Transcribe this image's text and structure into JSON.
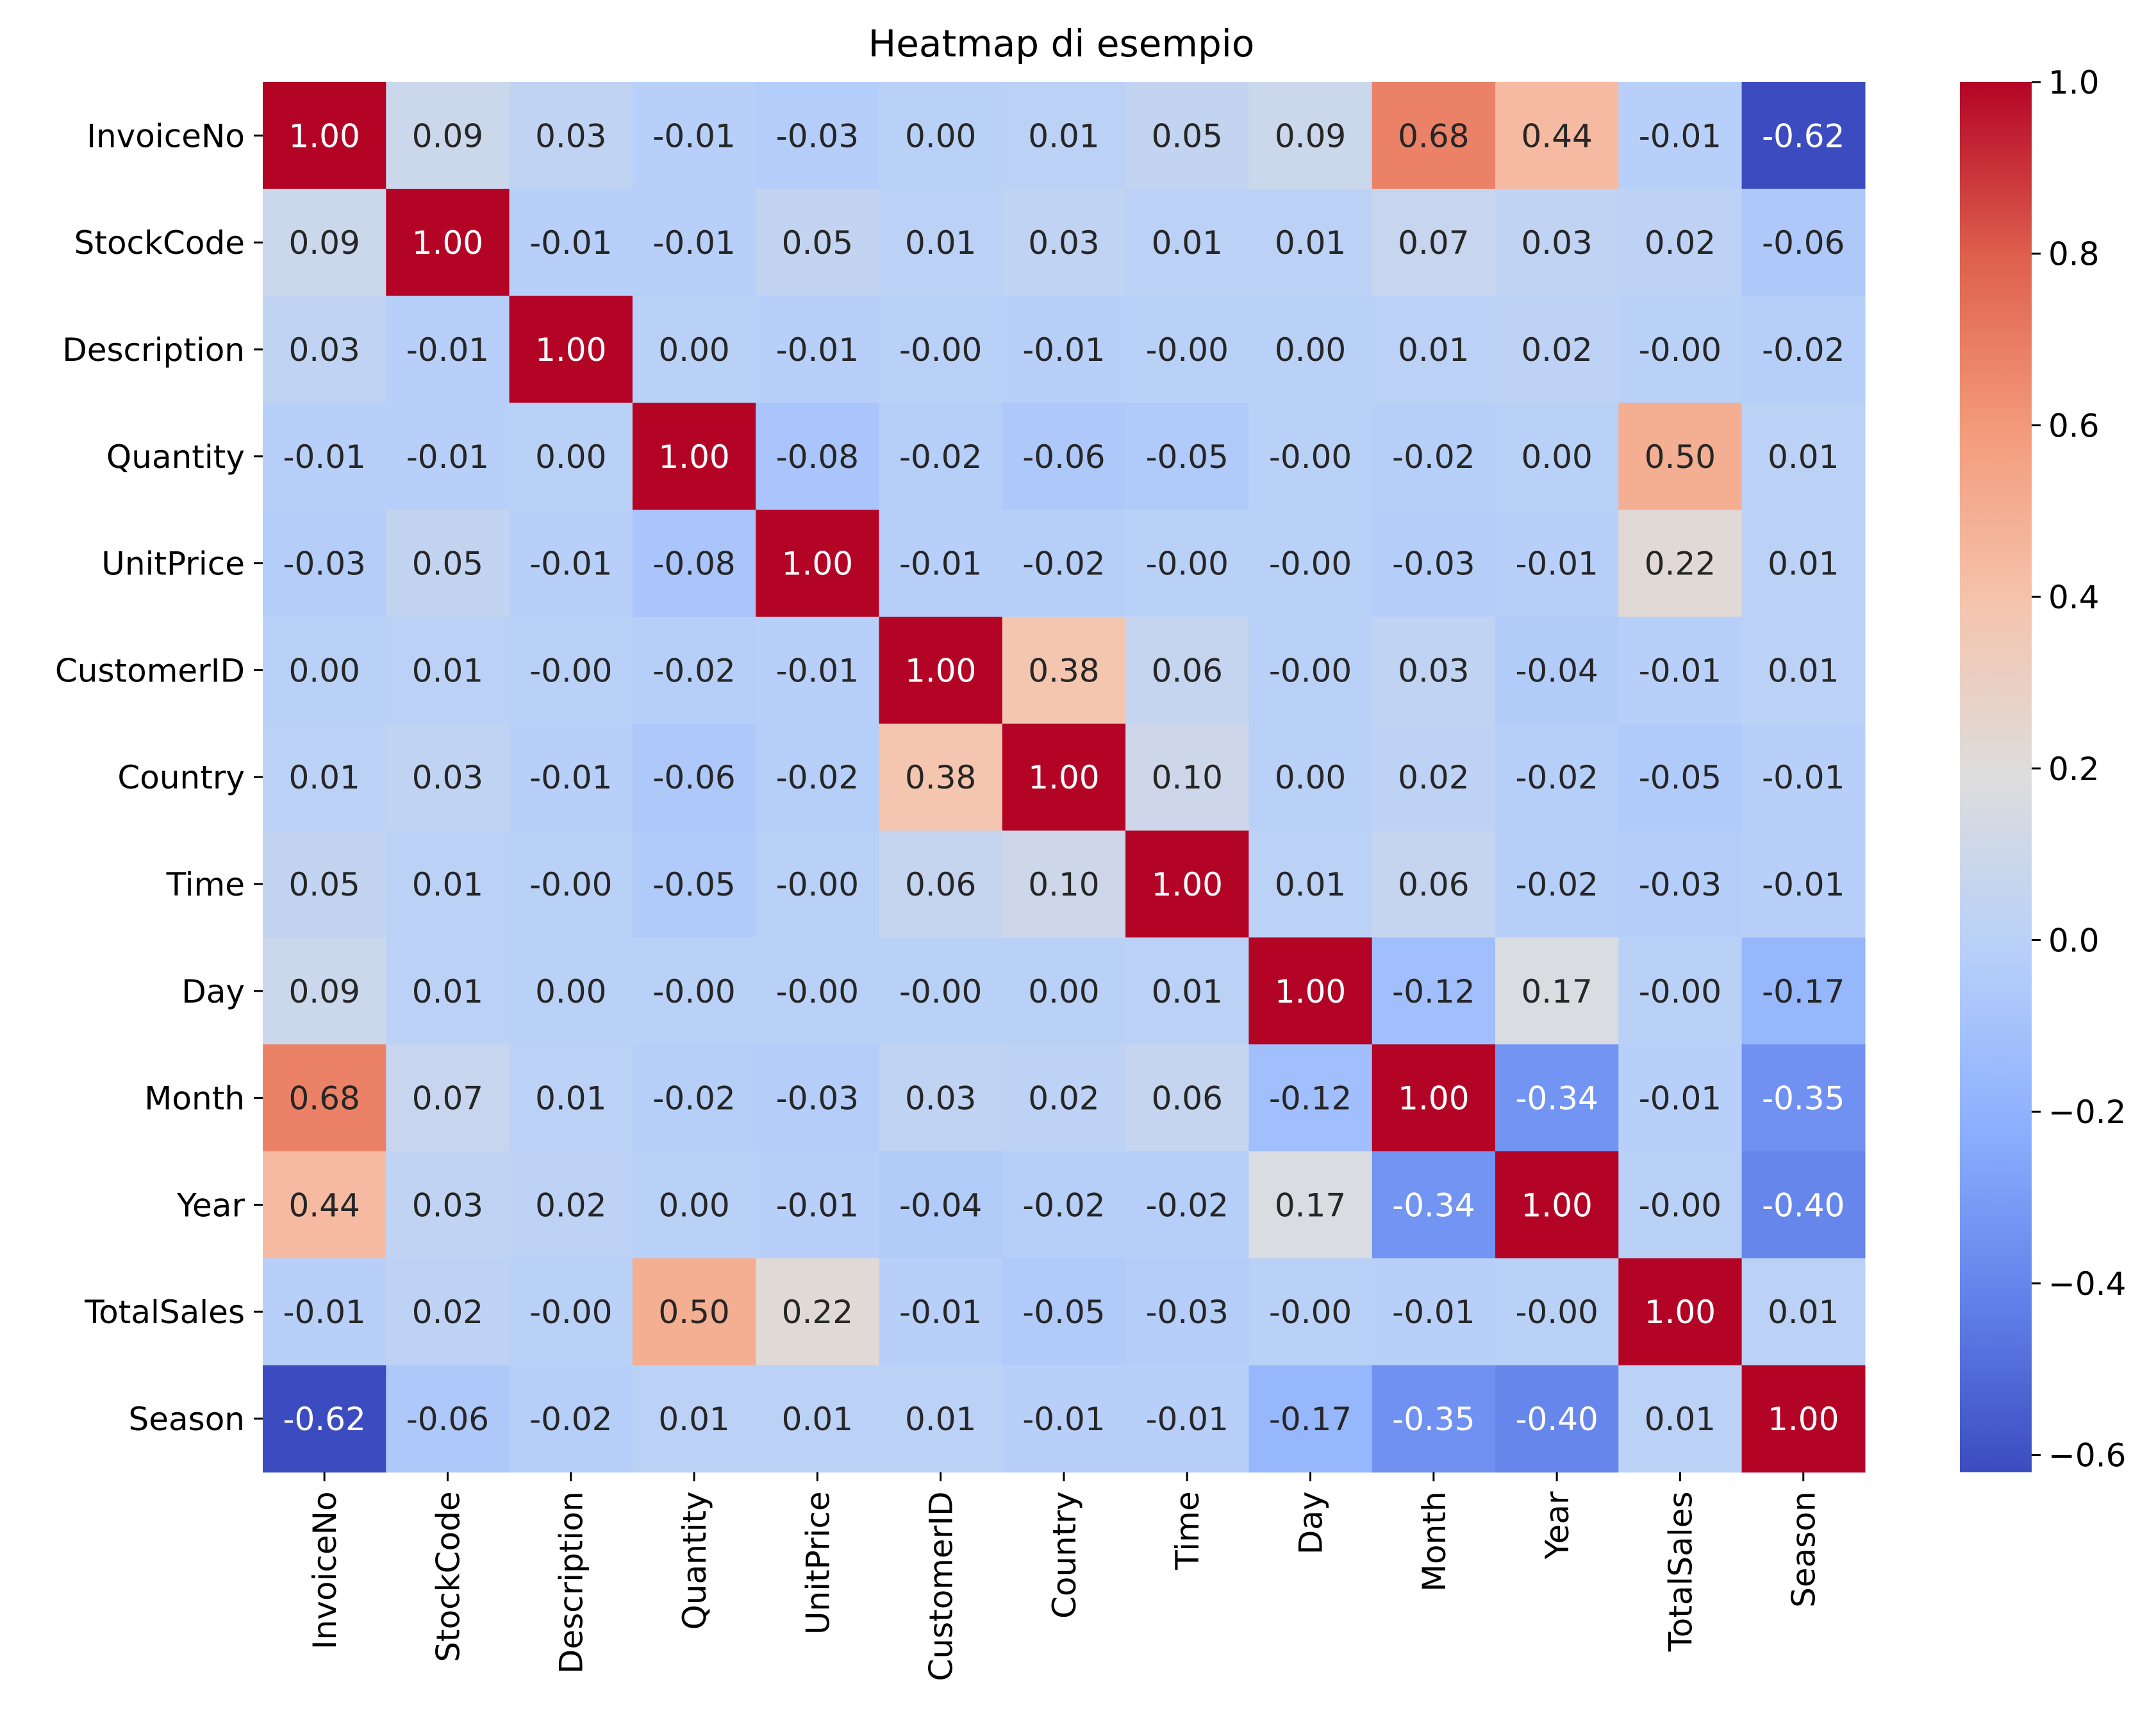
{
  "chart_data": {
    "type": "heatmap",
    "title": "Heatmap di esempio",
    "xlabel": "",
    "ylabel": "",
    "colormap": "coolwarm",
    "value_range": [
      -0.62,
      1.0
    ],
    "categories": [
      "InvoiceNo",
      "StockCode",
      "Description",
      "Quantity",
      "UnitPrice",
      "CustomerID",
      "Country",
      "Time",
      "Day",
      "Month",
      "Year",
      "TotalSales",
      "Season"
    ],
    "values": [
      [
        1.0,
        0.09,
        0.03,
        -0.01,
        -0.03,
        0.0,
        0.01,
        0.05,
        0.09,
        0.68,
        0.44,
        -0.01,
        -0.62
      ],
      [
        0.09,
        1.0,
        -0.01,
        -0.01,
        0.05,
        0.01,
        0.03,
        0.01,
        0.01,
        0.07,
        0.03,
        0.02,
        -0.06
      ],
      [
        0.03,
        -0.01,
        1.0,
        0.0,
        -0.01,
        -0.0,
        -0.01,
        -0.0,
        0.0,
        0.01,
        0.02,
        -0.0,
        -0.02
      ],
      [
        -0.01,
        -0.01,
        0.0,
        1.0,
        -0.08,
        -0.02,
        -0.06,
        -0.05,
        -0.0,
        -0.02,
        0.0,
        0.5,
        0.01
      ],
      [
        -0.03,
        0.05,
        -0.01,
        -0.08,
        1.0,
        -0.01,
        -0.02,
        -0.0,
        -0.0,
        -0.03,
        -0.01,
        0.22,
        0.01
      ],
      [
        0.0,
        0.01,
        -0.0,
        -0.02,
        -0.01,
        1.0,
        0.38,
        0.06,
        -0.0,
        0.03,
        -0.04,
        -0.01,
        0.01
      ],
      [
        0.01,
        0.03,
        -0.01,
        -0.06,
        -0.02,
        0.38,
        1.0,
        0.1,
        0.0,
        0.02,
        -0.02,
        -0.05,
        -0.01
      ],
      [
        0.05,
        0.01,
        -0.0,
        -0.05,
        -0.0,
        0.06,
        0.1,
        1.0,
        0.01,
        0.06,
        -0.02,
        -0.03,
        -0.01
      ],
      [
        0.09,
        0.01,
        0.0,
        -0.0,
        -0.0,
        -0.0,
        0.0,
        0.01,
        1.0,
        -0.12,
        0.17,
        -0.0,
        -0.17
      ],
      [
        0.68,
        0.07,
        0.01,
        -0.02,
        -0.03,
        0.03,
        0.02,
        0.06,
        -0.12,
        1.0,
        -0.34,
        -0.01,
        -0.35
      ],
      [
        0.44,
        0.03,
        0.02,
        0.0,
        -0.01,
        -0.04,
        -0.02,
        -0.02,
        0.17,
        -0.34,
        1.0,
        -0.0,
        -0.4
      ],
      [
        -0.01,
        0.02,
        -0.0,
        0.5,
        0.22,
        -0.01,
        -0.05,
        -0.03,
        -0.0,
        -0.01,
        -0.0,
        1.0,
        0.01
      ],
      [
        -0.62,
        -0.06,
        -0.02,
        0.01,
        0.01,
        0.01,
        -0.01,
        -0.01,
        -0.17,
        -0.35,
        -0.4,
        0.01,
        1.0
      ]
    ],
    "colorbar_ticks": [
      1.0,
      0.8,
      0.6,
      0.4,
      0.2,
      0.0,
      -0.2,
      -0.4,
      -0.6
    ],
    "colorbar_tick_labels": [
      "1.0",
      "0.8",
      "0.6",
      "0.4",
      "0.2",
      "0.0",
      "−0.2",
      "−0.4",
      "−0.6"
    ],
    "annotation_format": "0.00"
  }
}
